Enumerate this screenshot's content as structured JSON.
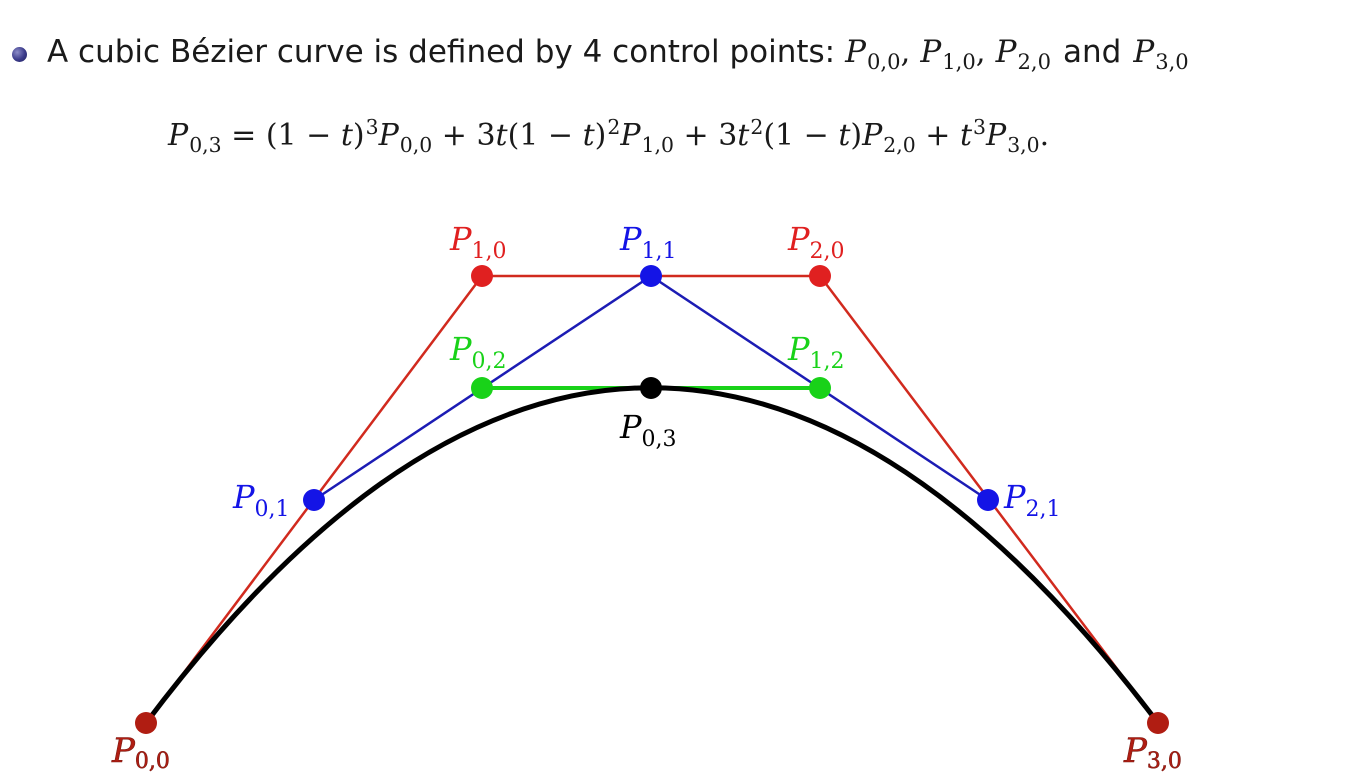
{
  "intro": {
    "text": "A cubic Bézier curve is defined by 4 control points:",
    "p00_main": "P",
    "p00_sub": "0,0",
    "p10_main": "P",
    "p10_sub": "1,0",
    "p20_main": "P",
    "p20_sub": "2,0",
    "p30_main": "P",
    "p30_sub": "3,0",
    "sep": ",",
    "conj": "and"
  },
  "formula": {
    "lhs_main": "P",
    "lhs_sub": "0,3",
    "eq": " = (1 − ",
    "t1": "t",
    "close1": ")",
    "exp1": "3",
    "term1_main": "P",
    "term1_sub": "0,0",
    "plus1": " + 3",
    "t2": "t",
    "open2": "(1 − ",
    "t3": "t",
    "close2": ")",
    "exp2": "2",
    "term2_main": "P",
    "term2_sub": "1,0",
    "plus2": " + 3",
    "t4": "t",
    "exp3": "2",
    "open3": "(1 − ",
    "t5": "t",
    "close3": ")",
    "term3_main": "P",
    "term3_sub": "2,0",
    "plus3": " + ",
    "t6": "t",
    "exp4": "3",
    "term4_main": "P",
    "term4_sub": "3,0",
    "end": "."
  },
  "colors": {
    "red": "#e02020",
    "red_line": "#d12a1e",
    "blue": "#1414e6",
    "blue_line": "#1c1cb4",
    "green": "#19d219",
    "black": "#000000",
    "dark_red": "#b01d12"
  },
  "points": {
    "P00": {
      "main": "P",
      "sub": "0,0"
    },
    "P10": {
      "main": "P",
      "sub": "1,0"
    },
    "P20": {
      "main": "P",
      "sub": "2,0"
    },
    "P30": {
      "main": "P",
      "sub": "3,0"
    },
    "P01": {
      "main": "P",
      "sub": "0,1"
    },
    "P11": {
      "main": "P",
      "sub": "1,1"
    },
    "P21": {
      "main": "P",
      "sub": "2,1"
    },
    "P02": {
      "main": "P",
      "sub": "0,2"
    },
    "P12": {
      "main": "P",
      "sub": "1,2"
    },
    "P03": {
      "main": "P",
      "sub": "0,3"
    }
  }
}
